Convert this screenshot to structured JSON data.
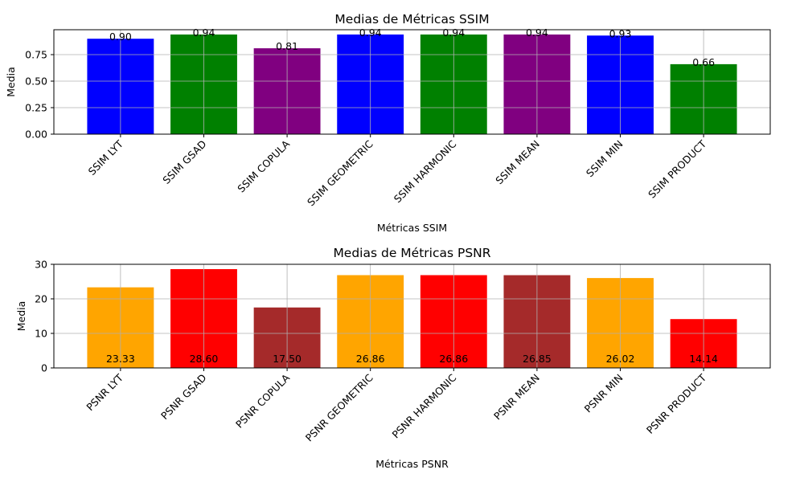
{
  "chart_data": [
    {
      "type": "bar",
      "title": "Medias de Métricas SSIM",
      "xlabel": "Métricas SSIM",
      "ylabel": "Media",
      "categories": [
        "SSIM LYT",
        "SSIM GSAD",
        "SSIM COPULA",
        "SSIM GEOMETRIC",
        "SSIM HARMONIC",
        "SSIM MEAN",
        "SSIM MIN",
        "SSIM PRODUCT"
      ],
      "values": [
        0.9,
        0.94,
        0.81,
        0.94,
        0.94,
        0.94,
        0.93,
        0.66
      ],
      "data_labels": [
        "0.90",
        "0.94",
        "0.81",
        "0.94",
        "0.94",
        "0.94",
        "0.93",
        "0.66"
      ],
      "colors": [
        "#0000ff",
        "#008000",
        "#800080",
        "#0000ff",
        "#008000",
        "#800080",
        "#0000ff",
        "#008000"
      ],
      "ylim": [
        0,
        0.985
      ],
      "yticks": [
        0,
        0.25,
        0.5,
        0.75
      ],
      "ytick_labels": [
        "0.00",
        "0.25",
        "0.50",
        "0.75"
      ],
      "grid": true,
      "label_position": "top"
    },
    {
      "type": "bar",
      "title": "Medias de Métricas PSNR",
      "xlabel": "Métricas PSNR",
      "ylabel": "Media",
      "categories": [
        "PSNR LYT",
        "PSNR GSAD",
        "PSNR COPULA",
        "PSNR GEOMETRIC",
        "PSNR HARMONIC",
        "PSNR MEAN",
        "PSNR MIN",
        "PSNR PRODUCT"
      ],
      "values": [
        23.33,
        28.6,
        17.5,
        26.86,
        26.86,
        26.85,
        26.02,
        14.14
      ],
      "data_labels": [
        "23.33",
        "28.60",
        "17.50",
        "26.86",
        "26.86",
        "26.85",
        "26.02",
        "14.14"
      ],
      "colors": [
        "#ffa500",
        "#ff0000",
        "#a52a2a",
        "#ffa500",
        "#ff0000",
        "#a52a2a",
        "#ffa500",
        "#ff0000"
      ],
      "ylim": [
        0,
        30
      ],
      "yticks": [
        0,
        10,
        20,
        30
      ],
      "ytick_labels": [
        "0",
        "10",
        "20",
        "30"
      ],
      "grid": true,
      "label_position": "bottom"
    }
  ]
}
